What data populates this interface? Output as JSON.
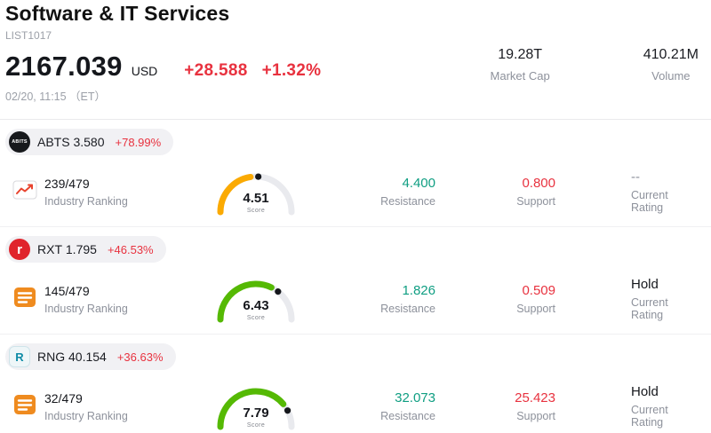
{
  "header": {
    "title": "Software & IT Services",
    "list_id": "LIST1017",
    "price": "2167.039",
    "currency": "USD",
    "change_abs": "+28.588",
    "change_pct": "+1.32%",
    "datetime": "02/20, 11:15 （ET）",
    "market_cap_value": "19.28T",
    "market_cap_label": "Market Cap",
    "volume_value": "410.21M",
    "volume_label": "Volume"
  },
  "labels": {
    "industry_ranking": "Industry Ranking",
    "score": "Score",
    "resistance": "Resistance",
    "support": "Support",
    "current_rating": "Current Rating"
  },
  "colors": {
    "red": "#e8323f",
    "green": "#0f9e82",
    "text-muted": "#8d919b"
  },
  "stocks": [
    {
      "ticker": "ABTS",
      "price": "3.580",
      "change": "+78.99%",
      "logo_text": "ABITS",
      "logo_bg": "#17191c",
      "logo_fg": "#ffffff",
      "logo_icon": "envelope-chart-icon",
      "ranking": "239/479",
      "score": 4.51,
      "score_display": "4.51",
      "gauge_color": "#fbaa02",
      "resistance": "4.400",
      "support": "0.800",
      "rating": "--",
      "rating_color": "#8d919b"
    },
    {
      "ticker": "RXT",
      "price": "1.795",
      "change": "+46.53%",
      "logo_text": "r",
      "logo_bg": "#e0242c",
      "logo_fg": "#ffffff",
      "logo_icon": "book-icon",
      "ranking": "145/479",
      "score": 6.43,
      "score_display": "6.43",
      "gauge_color": "#55b904",
      "resistance": "1.826",
      "support": "0.509",
      "rating": "Hold",
      "rating_color": "#15171c"
    },
    {
      "ticker": "RNG",
      "price": "40.154",
      "change": "+36.63%",
      "logo_text": "R",
      "logo_bg": "#eef6f8",
      "logo_fg": "#0d8ba6",
      "logo_icon": "book-icon",
      "ranking": "32/479",
      "score": 7.79,
      "score_display": "7.79",
      "gauge_color": "#55b904",
      "resistance": "32.073",
      "support": "25.423",
      "rating": "Hold",
      "rating_color": "#15171c"
    }
  ]
}
